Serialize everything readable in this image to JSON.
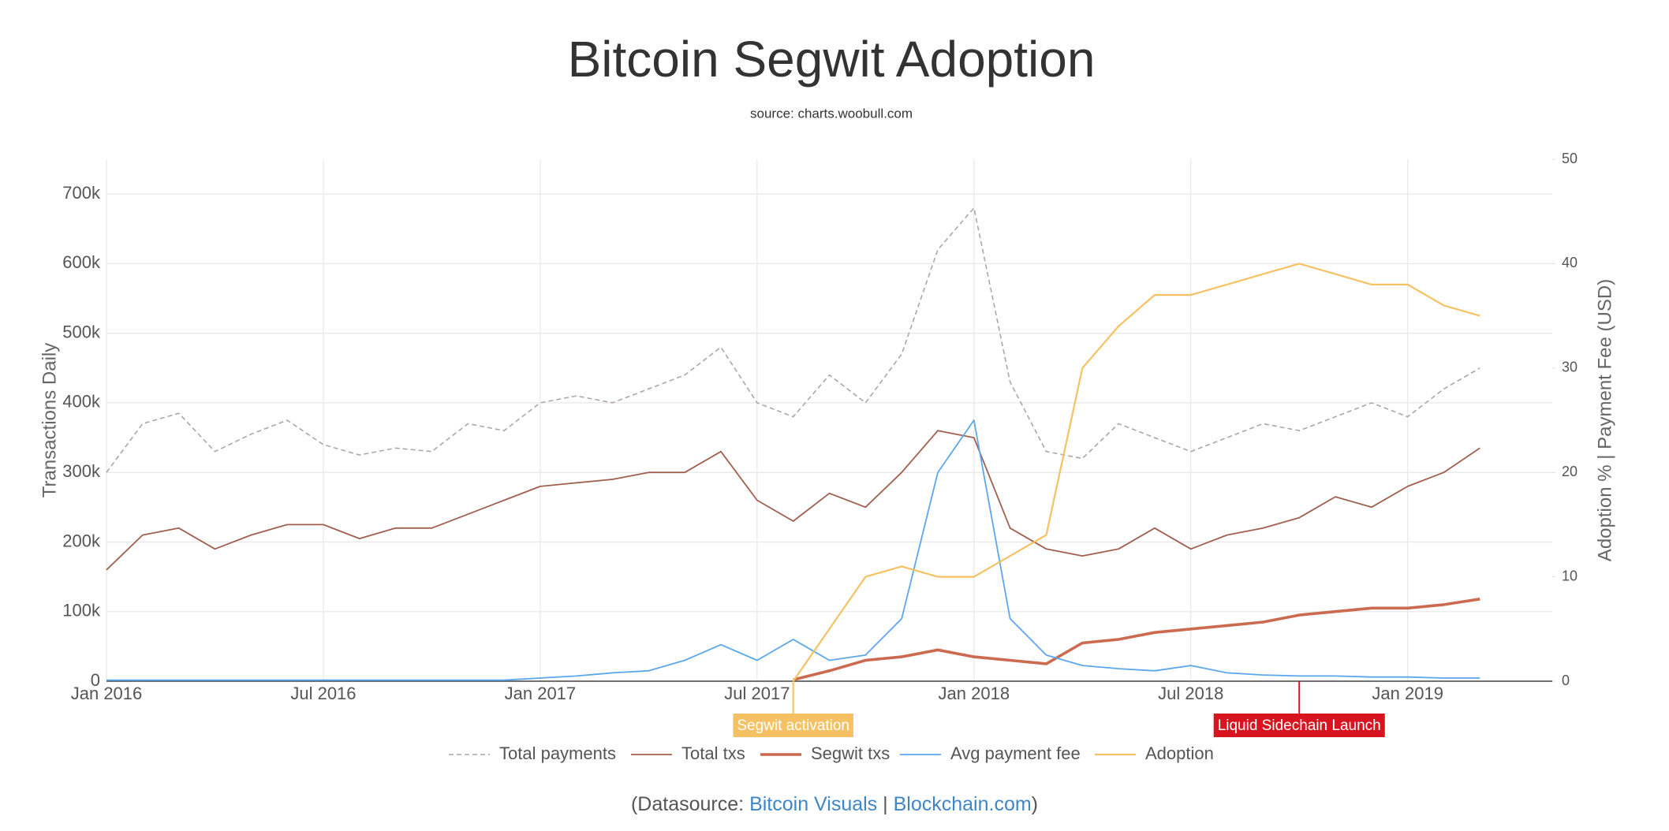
{
  "chart_data": {
    "type": "line",
    "title": "Bitcoin Segwit Adoption",
    "subtitle": "source: charts.woobull.com",
    "y_label": "Transactions Daily",
    "y2_label": "Adoption % | Payment Fee (USD)",
    "grid": true,
    "x": [
      "2016-01",
      "2016-02",
      "2016-03",
      "2016-04",
      "2016-05",
      "2016-06",
      "2016-07",
      "2016-08",
      "2016-09",
      "2016-10",
      "2016-11",
      "2016-12",
      "2017-01",
      "2017-02",
      "2017-03",
      "2017-04",
      "2017-05",
      "2017-06",
      "2017-07",
      "2017-08",
      "2017-09",
      "2017-10",
      "2017-11",
      "2017-12",
      "2018-01",
      "2018-02",
      "2018-03",
      "2018-04",
      "2018-05",
      "2018-06",
      "2018-07",
      "2018-08",
      "2018-09",
      "2018-10",
      "2018-11",
      "2018-12",
      "2019-01",
      "2019-02",
      "2019-03"
    ],
    "xlim": [
      "2016-01",
      "2019-05"
    ],
    "xticks": [
      {
        "value": "2016-01",
        "label": "Jan 2016"
      },
      {
        "value": "2016-07",
        "label": "Jul 2016"
      },
      {
        "value": "2017-01",
        "label": "Jan 2017"
      },
      {
        "value": "2017-07",
        "label": "Jul 2017"
      },
      {
        "value": "2018-01",
        "label": "Jan 2018"
      },
      {
        "value": "2018-07",
        "label": "Jul 2018"
      },
      {
        "value": "2019-01",
        "label": "Jan 2019"
      }
    ],
    "ylim": [
      0,
      750000
    ],
    "yticks": [
      0,
      {
        "value": 100000,
        "label": "100k"
      },
      {
        "value": 200000,
        "label": "200k"
      },
      {
        "value": 300000,
        "label": "300k"
      },
      {
        "value": 400000,
        "label": "400k"
      },
      {
        "value": 500000,
        "label": "500k"
      },
      {
        "value": 600000,
        "label": "600k"
      },
      {
        "value": 700000,
        "label": "700k"
      }
    ],
    "y2lim": [
      0,
      50
    ],
    "y2ticks": [
      0,
      10,
      20,
      30,
      40,
      50
    ],
    "series": [
      {
        "name": "Total payments",
        "color": "#b0a4a8",
        "line_style": "dashed",
        "values": [
          300000,
          370000,
          385000,
          330000,
          355000,
          375000,
          340000,
          325000,
          335000,
          330000,
          370000,
          360000,
          400000,
          410000,
          400000,
          420000,
          440000,
          480000,
          400000,
          380000,
          440000,
          400000,
          470000,
          620000,
          680000,
          430000,
          330000,
          320000,
          370000,
          350000,
          330000,
          350000,
          370000,
          360000,
          380000,
          400000,
          380000,
          420000,
          450000
        ]
      },
      {
        "name": "Total txs",
        "color": "#a0604f",
        "line_style": "solid",
        "values": [
          160000,
          210000,
          220000,
          190000,
          210000,
          225000,
          225000,
          205000,
          220000,
          220000,
          240000,
          260000,
          280000,
          285000,
          290000,
          300000,
          300000,
          330000,
          260000,
          230000,
          270000,
          250000,
          300000,
          360000,
          350000,
          220000,
          190000,
          180000,
          190000,
          220000,
          190000,
          210000,
          220000,
          235000,
          265000,
          250000,
          280000,
          300000,
          335000
        ]
      },
      {
        "name": "Segwit txs",
        "color": "#cc6a4f",
        "line_style": "solid",
        "values": [
          null,
          null,
          null,
          null,
          null,
          null,
          null,
          null,
          null,
          null,
          null,
          null,
          null,
          null,
          null,
          null,
          null,
          null,
          null,
          2000,
          15000,
          30000,
          35000,
          45000,
          35000,
          30000,
          25000,
          55000,
          60000,
          70000,
          75000,
          80000,
          85000,
          95000,
          100000,
          105000,
          105000,
          110000,
          118000
        ]
      },
      {
        "name": "Avg payment fee",
        "color": "#5aa7ee",
        "line_style": "solid",
        "axis": "y2",
        "values": [
          0.1,
          0.1,
          0.1,
          0.1,
          0.1,
          0.1,
          0.1,
          0.1,
          0.1,
          0.1,
          0.1,
          0.1,
          0.3,
          0.5,
          0.8,
          1.0,
          2.0,
          3.5,
          2.0,
          4.0,
          2.0,
          2.5,
          6.0,
          20,
          25,
          6,
          2.5,
          1.5,
          1.2,
          1.0,
          1.5,
          0.8,
          0.6,
          0.5,
          0.5,
          0.4,
          0.4,
          0.3,
          0.3
        ]
      },
      {
        "name": "Adoption",
        "color": "#f5c163",
        "line_style": "solid",
        "axis": "y2",
        "values": [
          null,
          null,
          null,
          null,
          null,
          null,
          null,
          null,
          null,
          null,
          null,
          null,
          null,
          null,
          null,
          null,
          null,
          null,
          null,
          0,
          5,
          10,
          11,
          10,
          10,
          12,
          14,
          30,
          34,
          37,
          37,
          38,
          39,
          40,
          39,
          38,
          38,
          36,
          35
        ]
      }
    ],
    "annotations": [
      {
        "x": "2017-08",
        "text": "Segwit activation",
        "color": "#f5c163"
      },
      {
        "x": "2018-10",
        "text": "Liquid Sidechain Launch",
        "color": "#d7141f"
      }
    ],
    "footer": {
      "prefix": "(Datasource:",
      "links": [
        "Bitcoin Visuals",
        "Blockchain.com"
      ],
      "separator": "|",
      "suffix": ")"
    }
  }
}
